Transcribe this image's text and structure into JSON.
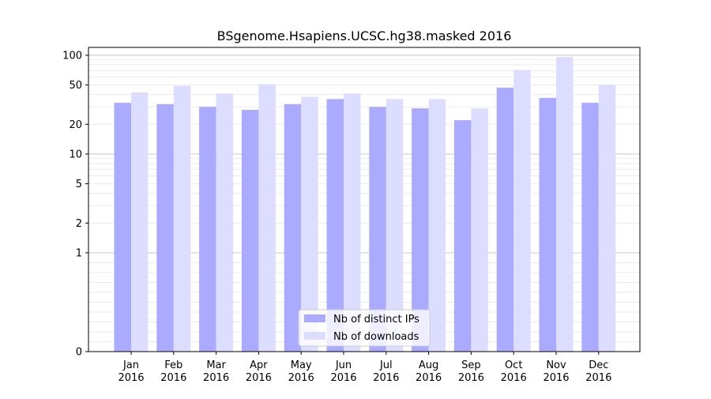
{
  "chart_data": {
    "type": "bar",
    "title": "BSgenome.Hsapiens.UCSC.hg38.masked 2016",
    "xlabel": "",
    "ylabel": "",
    "y_scale": "symlog",
    "y_ticks": [
      0,
      1,
      2,
      5,
      10,
      20,
      50,
      100
    ],
    "ylim": [
      0,
      120
    ],
    "grid": true,
    "legend_position": "bottom-center",
    "categories": [
      [
        "Jan",
        "2016"
      ],
      [
        "Feb",
        "2016"
      ],
      [
        "Mar",
        "2016"
      ],
      [
        "Apr",
        "2016"
      ],
      [
        "May",
        "2016"
      ],
      [
        "Jun",
        "2016"
      ],
      [
        "Jul",
        "2016"
      ],
      [
        "Aug",
        "2016"
      ],
      [
        "Sep",
        "2016"
      ],
      [
        "Oct",
        "2016"
      ],
      [
        "Nov",
        "2016"
      ],
      [
        "Dec",
        "2016"
      ]
    ],
    "series": [
      {
        "name": "Nb of distinct IPs",
        "color": "#aaaaff",
        "values": [
          33,
          32,
          30,
          28,
          32,
          36,
          30,
          29,
          22,
          47,
          37,
          33
        ]
      },
      {
        "name": "Nb of downloads",
        "color": "#ddddff",
        "values": [
          42,
          49,
          41,
          51,
          38,
          41,
          36,
          36,
          29,
          71,
          96,
          50
        ]
      }
    ]
  }
}
